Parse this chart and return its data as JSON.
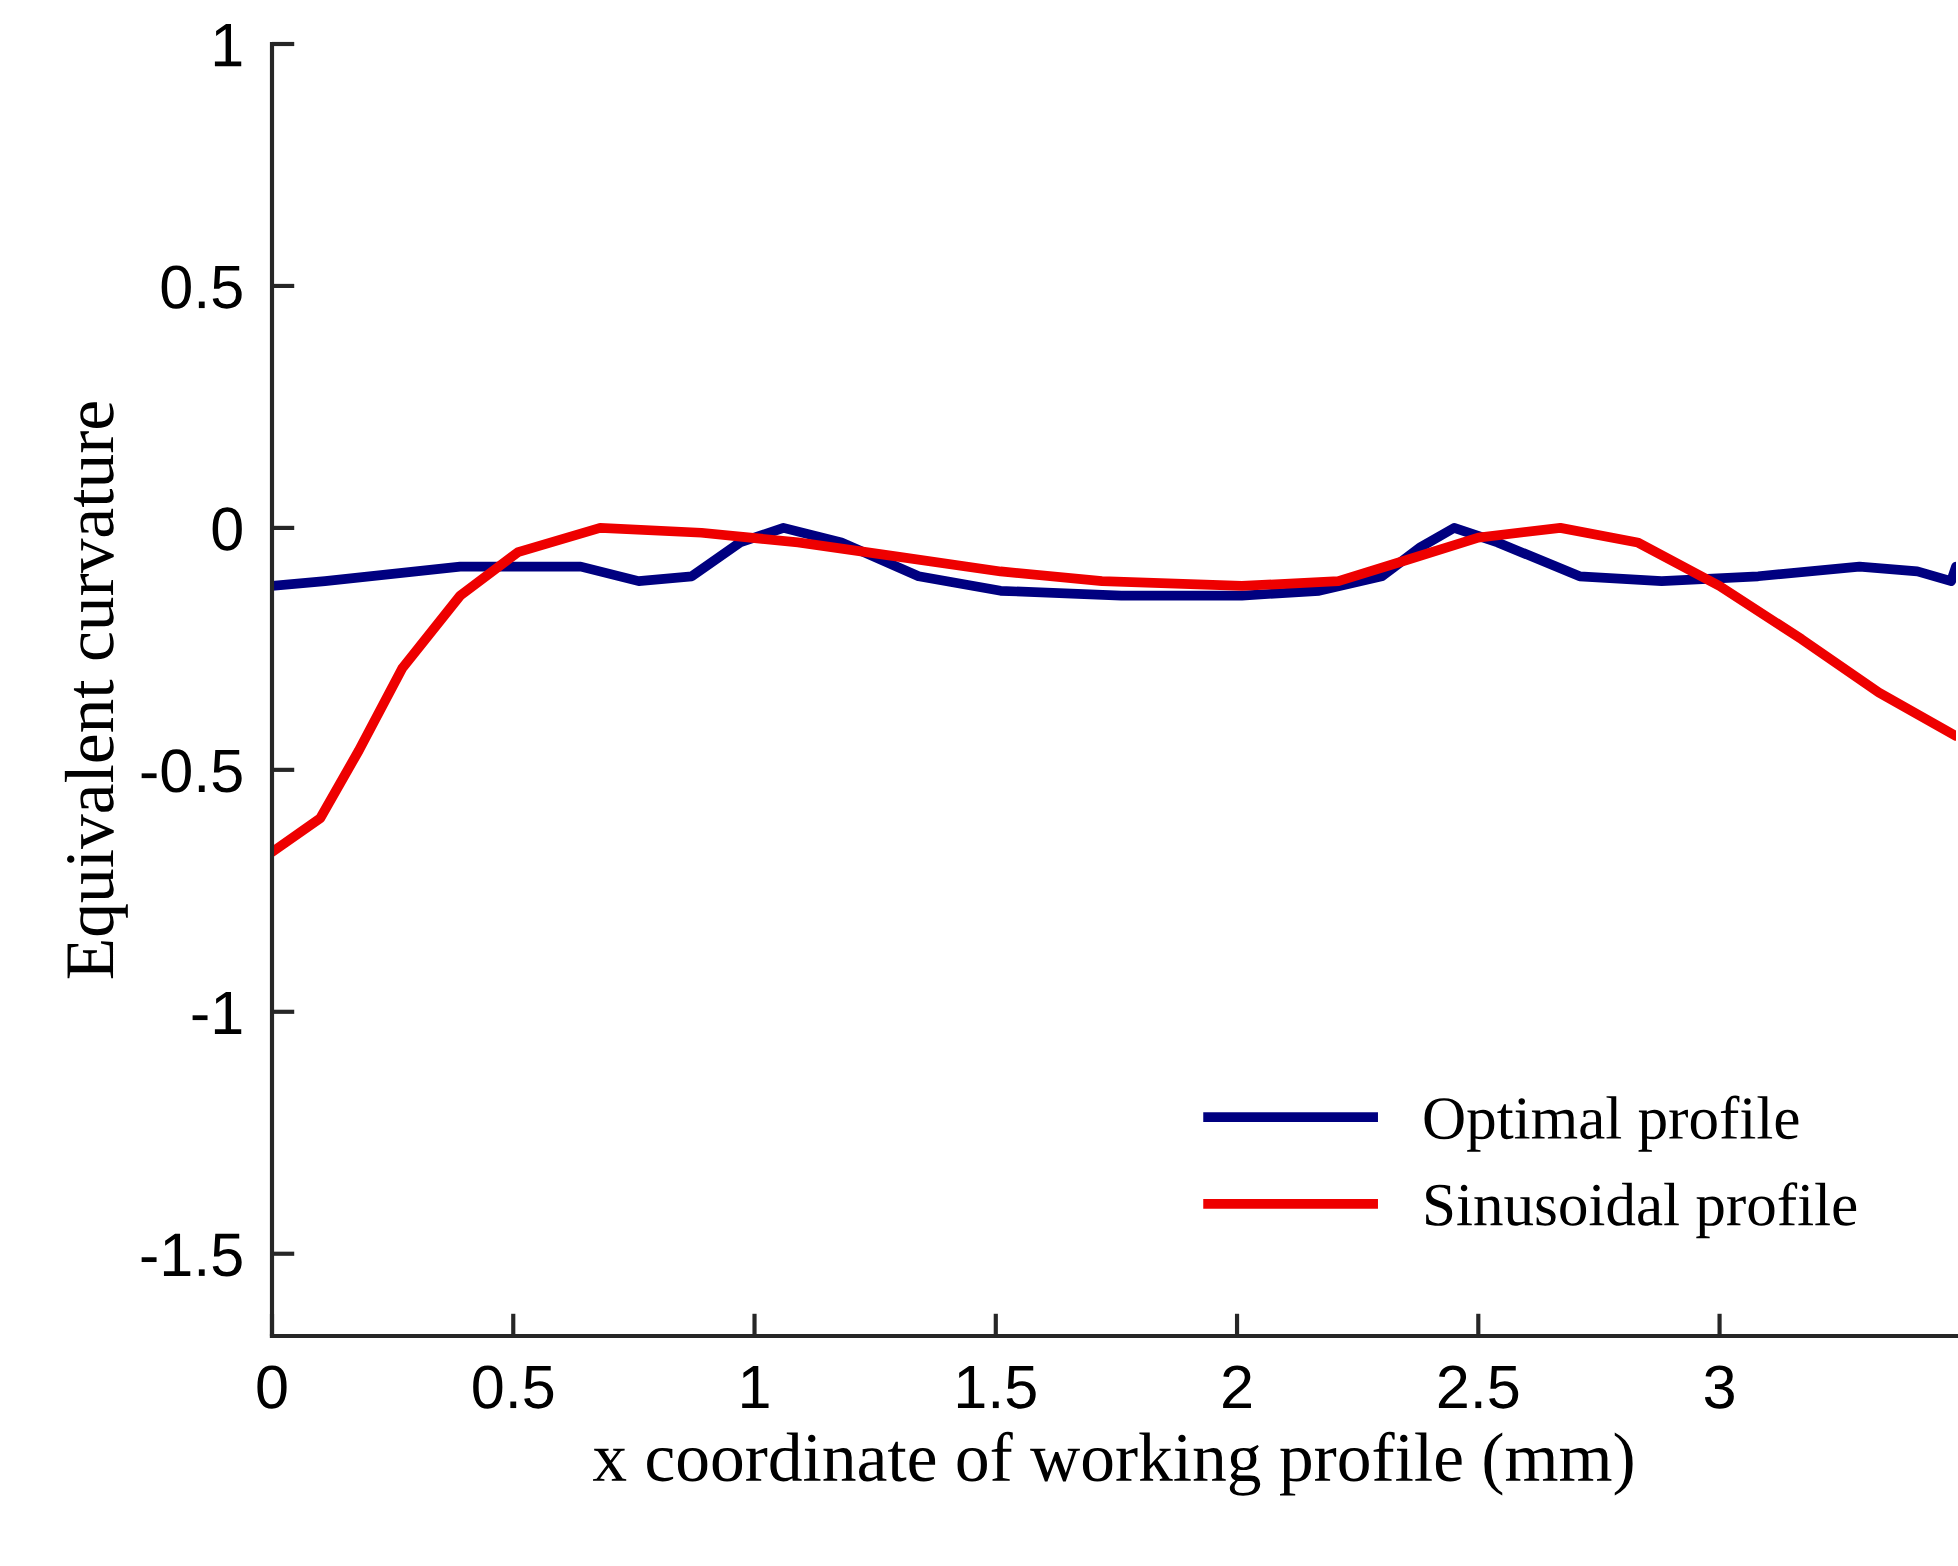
{
  "chart_data": {
    "type": "line",
    "xlabel": "x coordinate of working profile (mm)",
    "ylabel": "Equivalent curvature",
    "xlim": [
      0,
      3.49
    ],
    "ylim": [
      -1.67,
      1
    ],
    "xticks": [
      0,
      0.5,
      1,
      1.5,
      2,
      2.5,
      3
    ],
    "yticks": [
      -1.5,
      -1,
      -0.5,
      0,
      0.5,
      1
    ],
    "grid": false,
    "legend": "bottom right",
    "marker": "none",
    "line_style": "solid",
    "series": [
      {
        "name": "Optimal profile",
        "color": "#000080",
        "x": [
          0,
          0.11,
          0.39,
          0.64,
          0.76,
          0.87,
          0.97,
          1.06,
          1.18,
          1.34,
          1.51,
          1.76,
          2.01,
          2.17,
          2.3,
          2.38,
          2.45,
          2.54,
          2.71,
          2.88,
          3.08,
          3.29,
          3.41,
          3.48,
          3.49
        ],
        "values": [
          -0.12,
          -0.11,
          -0.08,
          -0.08,
          -0.11,
          -0.1,
          -0.03,
          0.0,
          -0.03,
          -0.1,
          -0.13,
          -0.14,
          -0.14,
          -0.13,
          -0.1,
          -0.04,
          0.0,
          -0.03,
          -0.1,
          -0.11,
          -0.1,
          -0.08,
          -0.09,
          -0.11,
          -0.08
        ]
      },
      {
        "name": "Sinusoidal profile",
        "color": "#ee0000",
        "x": [
          0,
          0.1,
          0.18,
          0.27,
          0.39,
          0.51,
          0.68,
          0.89,
          1.09,
          1.3,
          1.51,
          1.72,
          2.01,
          2.21,
          2.34,
          2.5,
          2.67,
          2.83,
          3.0,
          3.17,
          3.33,
          3.49
        ],
        "values": [
          -0.67,
          -0.6,
          -0.46,
          -0.29,
          -0.14,
          -0.05,
          0.0,
          -0.01,
          -0.03,
          -0.06,
          -0.09,
          -0.11,
          -0.12,
          -0.11,
          -0.07,
          -0.02,
          0.0,
          -0.03,
          -0.12,
          -0.23,
          -0.34,
          -0.43
        ]
      }
    ]
  }
}
